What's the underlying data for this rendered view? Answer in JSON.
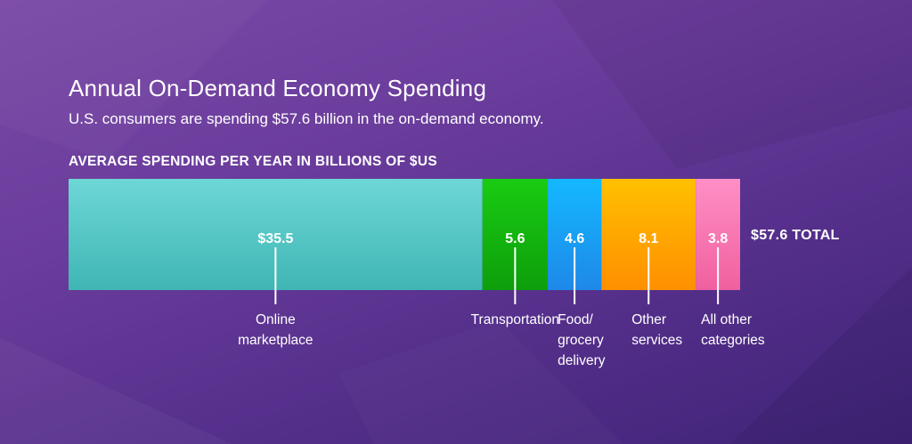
{
  "header": {
    "title": "Annual On-Demand Economy Spending",
    "subtitle": "U.S. consumers are spending $57.6 billion in the on-demand economy.",
    "axis_caption": "AVERAGE SPENDING PER YEAR IN BILLIONS OF $US"
  },
  "total_label": "$57.6 TOTAL",
  "chart_data": {
    "type": "bar",
    "orientation": "stacked-horizontal",
    "title": "Annual On-Demand Economy Spending",
    "subtitle": "U.S. consumers are spending $57.6 billion in the on-demand economy.",
    "xlabel": "AVERAGE SPENDING PER YEAR IN BILLIONS OF $US",
    "ylabel": "",
    "total": 57.6,
    "legend": "none",
    "grid": false,
    "categories": [
      "Online\nmarketplace",
      "Transportation",
      "Food/\ngrocery\ndelivery",
      "Other\nservices",
      "All other\ncategories"
    ],
    "values": [
      35.5,
      5.6,
      4.6,
      8.1,
      3.8
    ],
    "value_labels": [
      "$35.5",
      "5.6",
      "4.6",
      "8.1",
      "3.8"
    ],
    "colors": [
      [
        "#6dd7d6",
        "#3fb6b4"
      ],
      [
        "#19cc12",
        "#0e9e0b"
      ],
      [
        "#14b8ff",
        "#1e88e8"
      ],
      [
        "#ffc000",
        "#ff8f00"
      ],
      [
        "#ff8fc6",
        "#f0609e"
      ]
    ]
  }
}
